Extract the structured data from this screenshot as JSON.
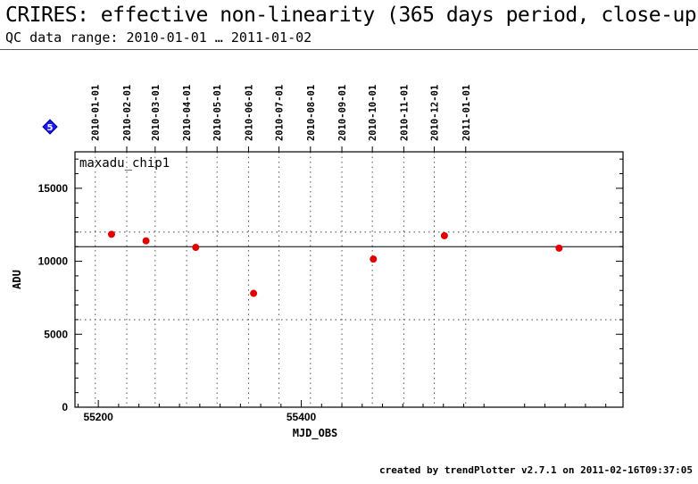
{
  "header": {
    "title": "CRIRES: effective non-linearity (365 days period, close-up)",
    "subtitle": "QC data range: 2010-01-01 … 2011-01-02"
  },
  "marker": {
    "label": "5",
    "color": "#1a1aff"
  },
  "footer": {
    "text": "created by trendPlotter v2.7.1 on 2011-02-16T09:37:05"
  },
  "chart_data": {
    "type": "scatter",
    "panel_label": "maxadu_chip1",
    "xlabel": "MJD_OBS",
    "ylabel": "ADU",
    "xlim": [
      55177,
      55717
    ],
    "ylim": [
      0,
      17500
    ],
    "x_ticks": [
      55200,
      55400
    ],
    "y_ticks": [
      0,
      5000,
      10000,
      15000
    ],
    "top_axis_dates": [
      {
        "label": "2010-01-01",
        "mjd": 55197
      },
      {
        "label": "2010-02-01",
        "mjd": 55228
      },
      {
        "label": "2010-03-01",
        "mjd": 55256
      },
      {
        "label": "2010-04-01",
        "mjd": 55287
      },
      {
        "label": "2010-05-01",
        "mjd": 55317
      },
      {
        "label": "2010-06-01",
        "mjd": 55348
      },
      {
        "label": "2010-07-01",
        "mjd": 55378
      },
      {
        "label": "2010-08-01",
        "mjd": 55409
      },
      {
        "label": "2010-09-01",
        "mjd": 55440
      },
      {
        "label": "2010-10-01",
        "mjd": 55470
      },
      {
        "label": "2010-11-01",
        "mjd": 55501
      },
      {
        "label": "2010-12-01",
        "mjd": 55531
      },
      {
        "label": "2011-01-01",
        "mjd": 55562
      }
    ],
    "reference_line": 11000,
    "threshold_lines": [
      6000,
      12000
    ],
    "series": [
      {
        "color": "#e00000",
        "points": [
          {
            "x": 55213,
            "y": 11850
          },
          {
            "x": 55247,
            "y": 11400
          },
          {
            "x": 55296,
            "y": 10950
          },
          {
            "x": 55353,
            "y": 7800
          },
          {
            "x": 55471,
            "y": 10150
          },
          {
            "x": 55541,
            "y": 11750
          },
          {
            "x": 55654,
            "y": 10900
          }
        ]
      }
    ],
    "grid": true
  }
}
